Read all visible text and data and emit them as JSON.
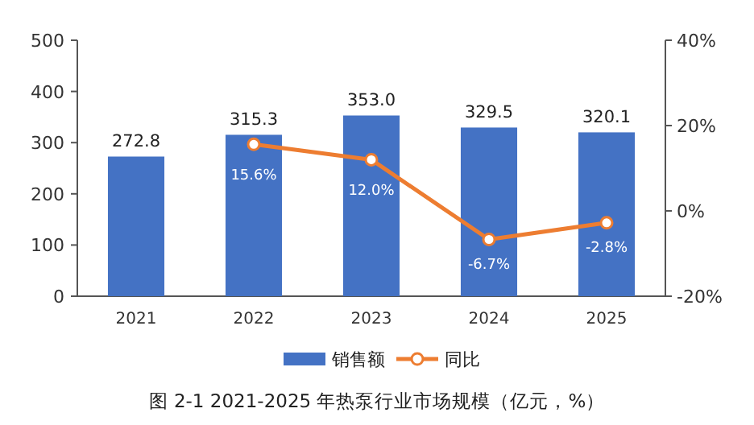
{
  "chart_data": {
    "type": "bar",
    "title": "图 2-1   2021-2025 年热泵行业市场规模（亿元，%）",
    "categories": [
      "2021",
      "2022",
      "2023",
      "2024",
      "2025"
    ],
    "series": [
      {
        "name": "销售额",
        "color": "#4472c4",
        "values": [
          272.8,
          315.3,
          353.0,
          329.5,
          320.1
        ],
        "value_labels": [
          "272.8",
          "315.3",
          "353.0",
          "329.5",
          "320.1"
        ]
      },
      {
        "name": "同比",
        "type": "line",
        "axis": "y2",
        "color": "#ed7d31",
        "marker": "circle",
        "values": [
          null,
          15.6,
          12.0,
          -6.7,
          -2.8
        ],
        "value_labels": [
          null,
          "15.6%",
          "12.0%",
          "-6.7%",
          "-2.8%"
        ]
      }
    ],
    "ylim": [
      0,
      500
    ],
    "yticks": [
      0,
      100,
      200,
      300,
      400,
      500
    ],
    "y2lim": [
      -20,
      40
    ],
    "y2ticks": [
      {
        "value": -20,
        "label": "-20%"
      },
      {
        "value": 0,
        "label": "0%"
      },
      {
        "value": 20,
        "label": "20%"
      },
      {
        "value": 40,
        "label": "40%"
      }
    ],
    "legend": "bottom",
    "grid": false
  }
}
